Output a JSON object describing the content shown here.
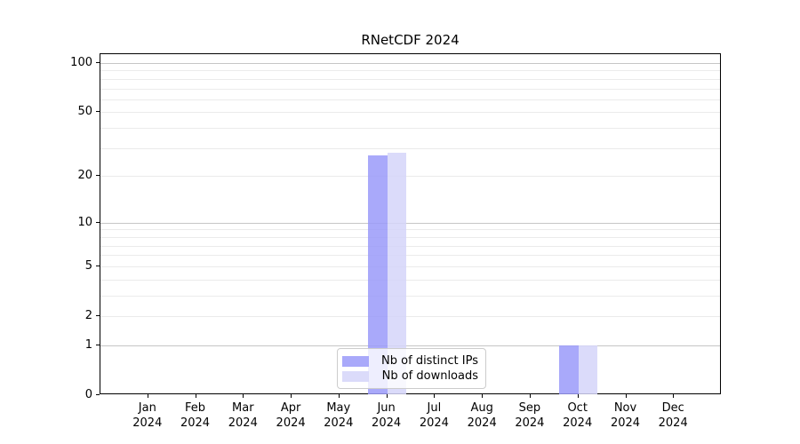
{
  "chart_data": {
    "type": "bar",
    "title": "RNetCDF 2024",
    "categories": [
      {
        "month": "Jan",
        "year": "2024"
      },
      {
        "month": "Feb",
        "year": "2024"
      },
      {
        "month": "Mar",
        "year": "2024"
      },
      {
        "month": "Apr",
        "year": "2024"
      },
      {
        "month": "May",
        "year": "2024"
      },
      {
        "month": "Jun",
        "year": "2024"
      },
      {
        "month": "Jul",
        "year": "2024"
      },
      {
        "month": "Aug",
        "year": "2024"
      },
      {
        "month": "Sep",
        "year": "2024"
      },
      {
        "month": "Oct",
        "year": "2024"
      },
      {
        "month": "Nov",
        "year": "2024"
      },
      {
        "month": "Dec",
        "year": "2024"
      }
    ],
    "series": [
      {
        "name": "Nb of distinct IPs",
        "color": "rgba(154,154,249,0.85)",
        "values": [
          0,
          0,
          0,
          0,
          0,
          27,
          0,
          0,
          0,
          1,
          0,
          0
        ]
      },
      {
        "name": "Nb of downloads",
        "color": "rgba(213,213,249,0.85)",
        "values": [
          0,
          0,
          0,
          0,
          0,
          28,
          0,
          0,
          0,
          1,
          0,
          0
        ]
      }
    ],
    "yscale": "log10(1+x)",
    "ylim": [
      0,
      116
    ],
    "yticks": [
      0,
      1,
      2,
      5,
      10,
      20,
      50,
      100
    ],
    "grid_major": [
      1,
      10,
      100
    ],
    "grid_minor": [
      2,
      3,
      4,
      5,
      6,
      7,
      8,
      9,
      20,
      30,
      40,
      50,
      60,
      70,
      80,
      90
    ],
    "legend_position": "bottom-center",
    "colors": {
      "grid_major": "#c6c6c6",
      "grid_minor": "#ebebeb",
      "spine": "#000000"
    }
  }
}
